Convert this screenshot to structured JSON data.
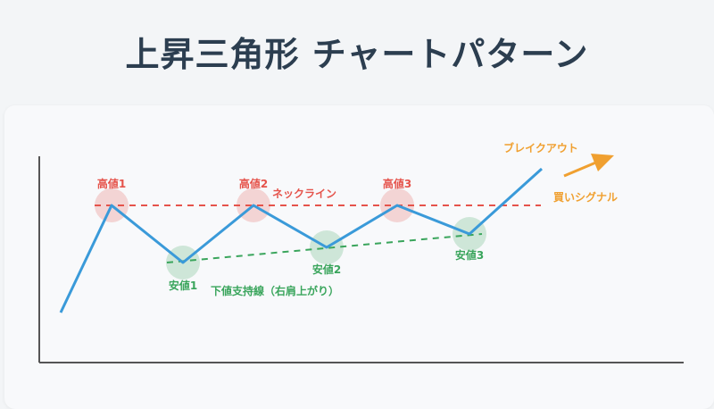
{
  "title": "上昇三角形 チャートパターン",
  "labels": {
    "high1": "高値1",
    "high2": "高値2",
    "high3": "高値3",
    "low1": "安値1",
    "low2": "安値2",
    "low3": "安値3",
    "neckline": "ネックライン",
    "support": "下値支持線（右肩上がり）",
    "breakout": "ブレイクアウト",
    "buy_signal": "買いシグナル"
  },
  "colors": {
    "price_line": "#3a9ad9",
    "resistance": "#e5534b",
    "support": "#3aa55c",
    "breakout": "#f0a030",
    "title": "#2c3e50"
  }
}
